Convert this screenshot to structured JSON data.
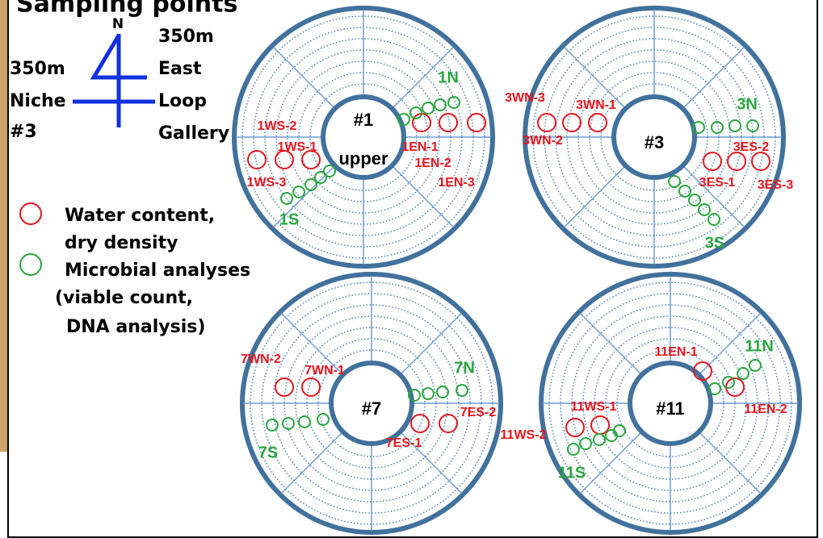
{
  "title": "Sampling points",
  "compass": {
    "north": "N",
    "east": [
      "350m",
      "East",
      "Loop",
      "Gallery"
    ],
    "west": [
      "350m",
      "Niche",
      "#3"
    ]
  },
  "legend": [
    {
      "label": [
        "Water content,",
        "dry density"
      ]
    },
    {
      "label": [
        "Microbial analyses",
        "(viable count,",
        "DNA analysis)"
      ]
    }
  ],
  "disks": [
    {
      "label": "#1",
      "sublabel": "upper",
      "points": [
        "1N",
        "1WS-2",
        "1WS-1",
        "1WS-3",
        "1S",
        "1EN-1",
        "1EN-2",
        "1EN-3"
      ]
    },
    {
      "label": "#3",
      "points": [
        "3WN-3",
        "3WN-1",
        "3WN-2",
        "3N",
        "3ES-2",
        "3ES-1",
        "3ES-3",
        "3S"
      ]
    },
    {
      "label": "#7",
      "points": [
        "7WN-2",
        "7WN-1",
        "7N",
        "7ES-2",
        "7ES-1",
        "7S"
      ]
    },
    {
      "label": "#11",
      "points": [
        "11EN-1",
        "11N",
        "11EN-2",
        "11WS-1",
        "11WS-2",
        "11S"
      ]
    }
  ]
}
